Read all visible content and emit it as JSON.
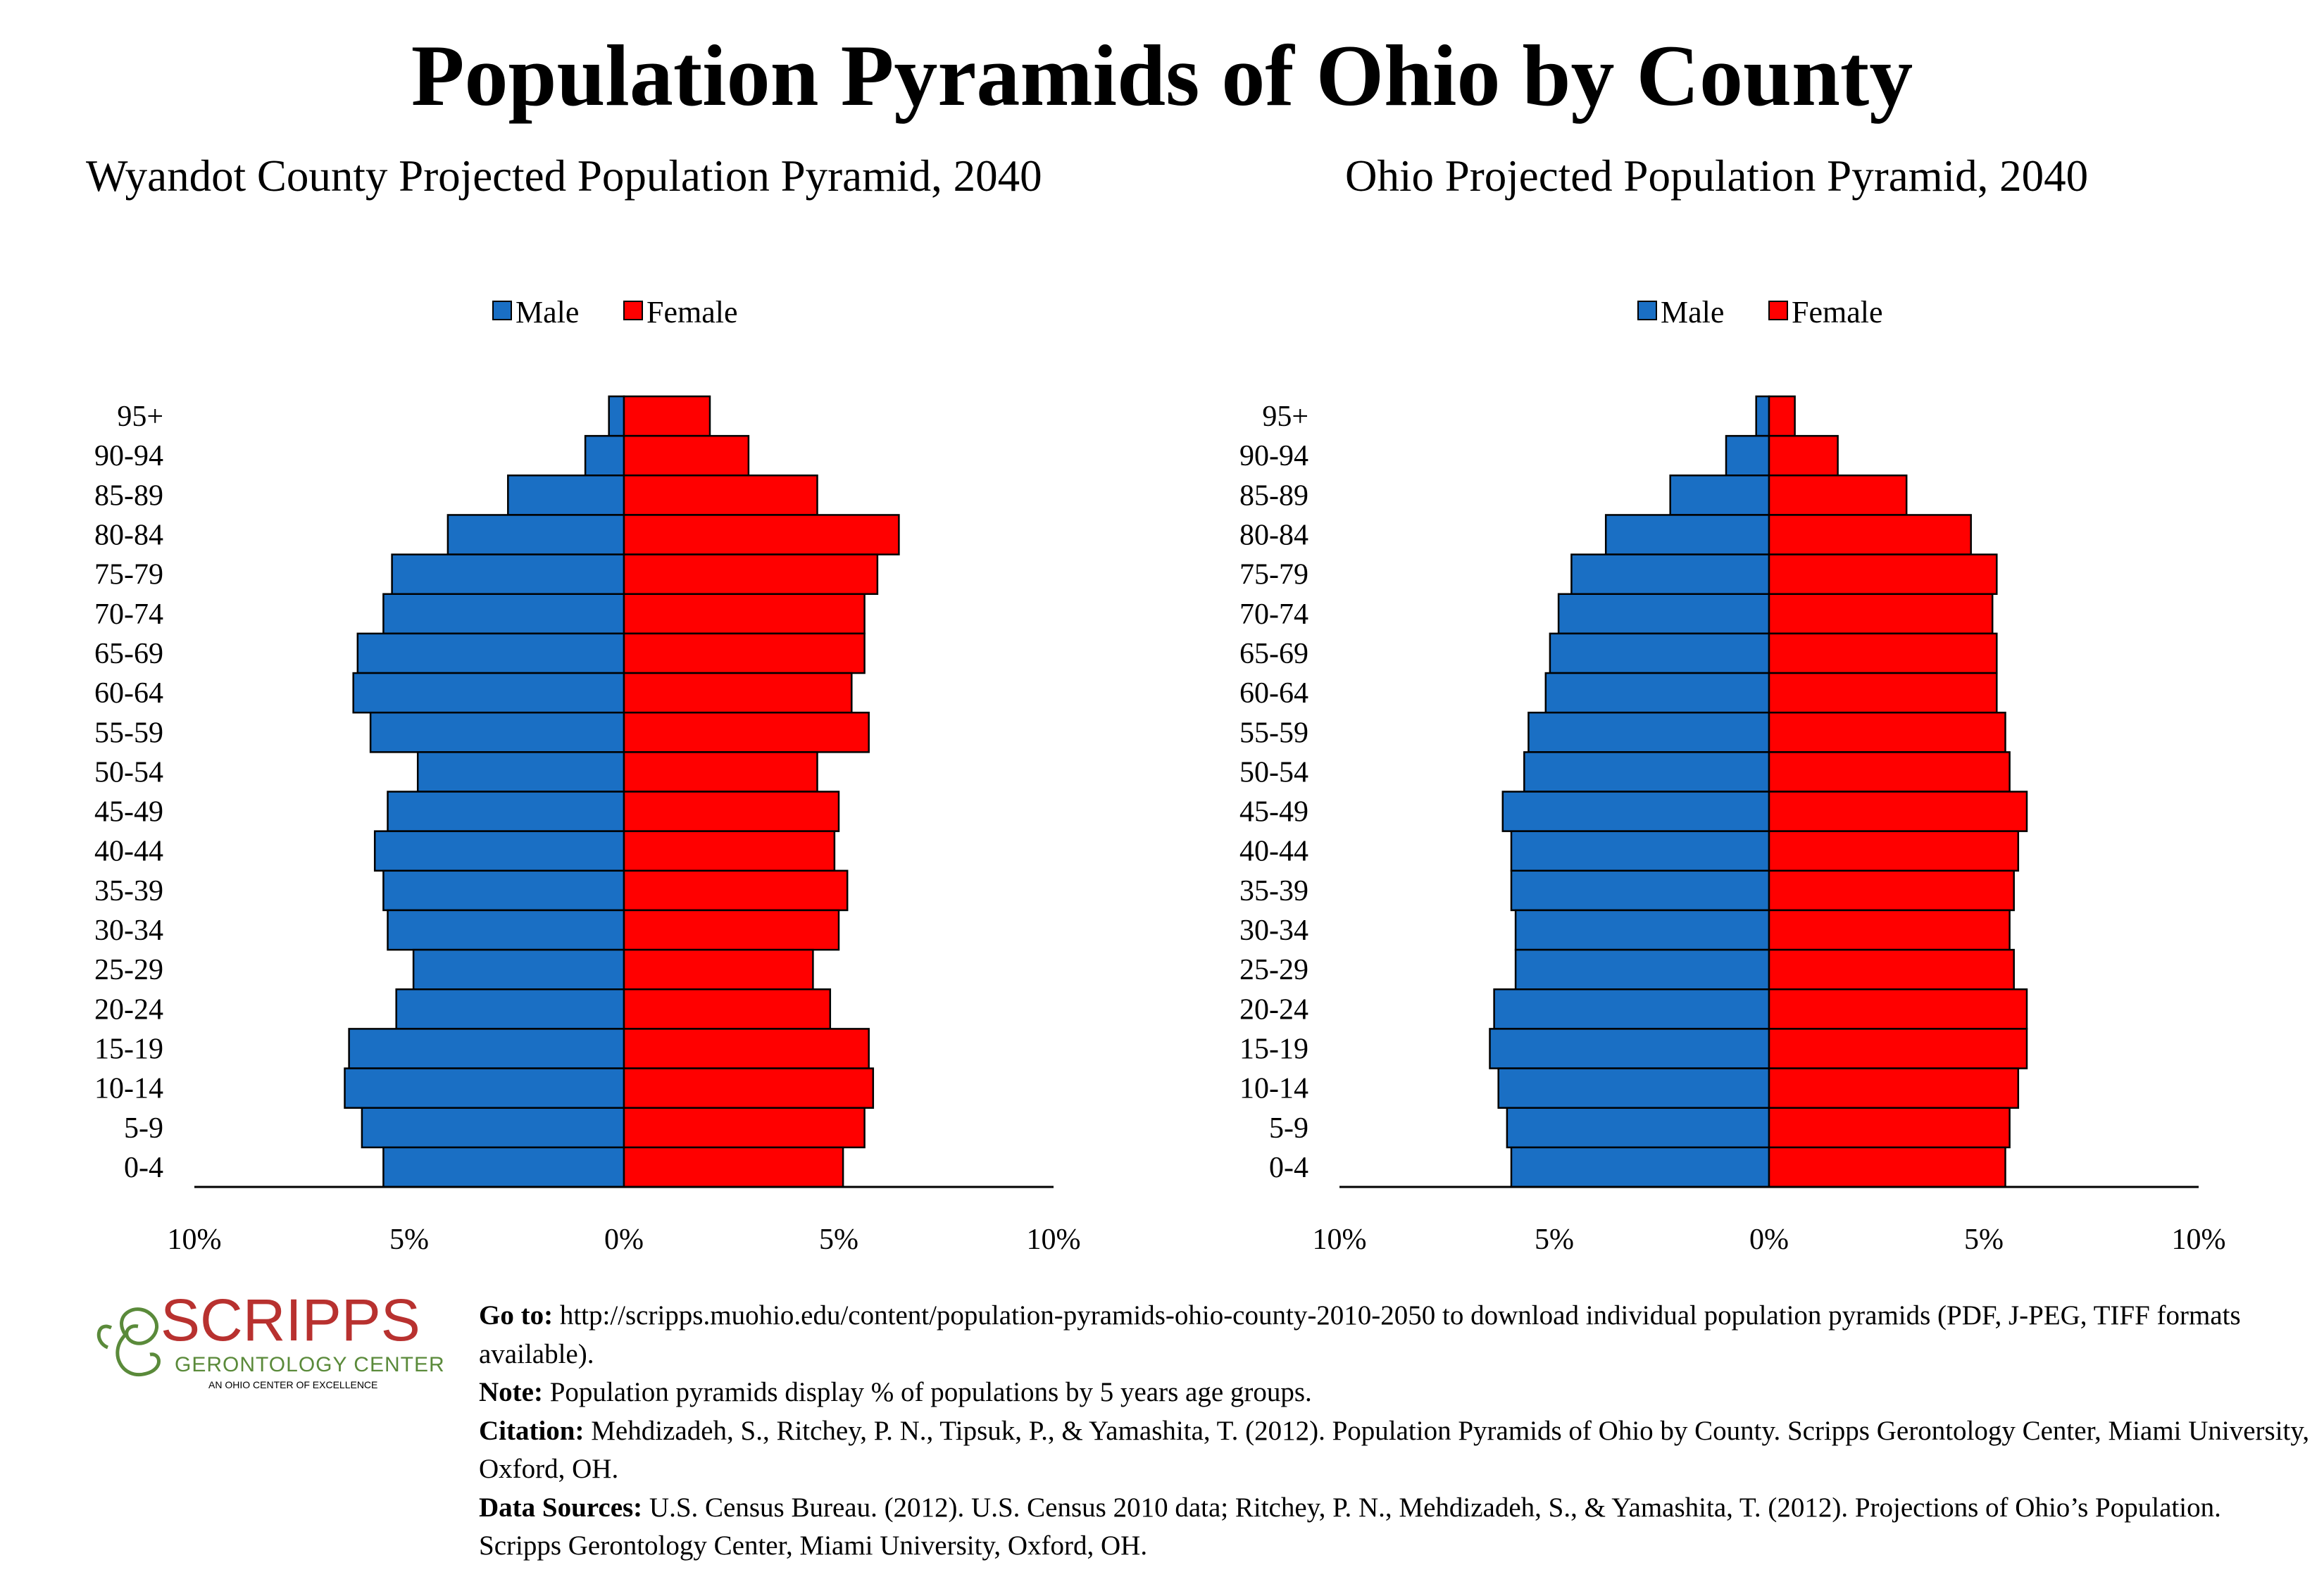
{
  "title": "Population Pyramids of Ohio by County",
  "colors": {
    "male": "#1a6fc4",
    "female": "#ff0000",
    "axis": "#000000",
    "logo_red": "#b8312f",
    "logo_green": "#5a8a3a"
  },
  "chart_data": [
    {
      "type": "bar",
      "title": "Wyandot County Projected Population Pyramid, 2040",
      "orientation": "horizontal-pyramid",
      "legend": {
        "position": "top-center",
        "entries": [
          "Male",
          "Female"
        ]
      },
      "categories": [
        "95+",
        "90-94",
        "85-89",
        "80-84",
        "75-79",
        "70-74",
        "65-69",
        "60-64",
        "55-59",
        "50-54",
        "45-49",
        "40-44",
        "35-39",
        "30-34",
        "25-29",
        "20-24",
        "15-19",
        "10-14",
        "5-9",
        "0-4"
      ],
      "series": [
        {
          "name": "Male",
          "values": [
            0.35,
            0.9,
            2.7,
            4.1,
            5.4,
            5.6,
            6.2,
            6.3,
            5.9,
            4.8,
            5.5,
            5.8,
            5.6,
            5.5,
            4.9,
            5.3,
            6.4,
            6.5,
            6.1,
            5.6
          ]
        },
        {
          "name": "Female",
          "values": [
            2.0,
            2.9,
            4.5,
            6.4,
            5.9,
            5.6,
            5.6,
            5.3,
            5.7,
            4.5,
            5.0,
            4.9,
            5.2,
            5.0,
            4.4,
            4.8,
            5.7,
            5.8,
            5.6,
            5.1
          ]
        }
      ],
      "xlim": [
        -10,
        10
      ],
      "xticks": [
        "10%",
        "5%",
        "0%",
        "5%",
        "10%"
      ],
      "grid": false
    },
    {
      "type": "bar",
      "title": "Ohio Projected Population Pyramid, 2040",
      "orientation": "horizontal-pyramid",
      "legend": {
        "position": "top-center",
        "entries": [
          "Male",
          "Female"
        ]
      },
      "categories": [
        "95+",
        "90-94",
        "85-89",
        "80-84",
        "75-79",
        "70-74",
        "65-69",
        "60-64",
        "55-59",
        "50-54",
        "45-49",
        "40-44",
        "35-39",
        "30-34",
        "25-29",
        "20-24",
        "15-19",
        "10-14",
        "5-9",
        "0-4"
      ],
      "series": [
        {
          "name": "Male",
          "values": [
            0.3,
            1.0,
            2.3,
            3.8,
            4.6,
            4.9,
            5.1,
            5.2,
            5.6,
            5.7,
            6.2,
            6.0,
            6.0,
            5.9,
            5.9,
            6.4,
            6.5,
            6.3,
            6.1,
            6.0
          ]
        },
        {
          "name": "Female",
          "values": [
            0.6,
            1.6,
            3.2,
            4.7,
            5.3,
            5.2,
            5.3,
            5.3,
            5.5,
            5.6,
            6.0,
            5.8,
            5.7,
            5.6,
            5.7,
            6.0,
            6.0,
            5.8,
            5.6,
            5.5
          ]
        }
      ],
      "xlim": [
        -10,
        10
      ],
      "xticks": [
        "10%",
        "5%",
        "0%",
        "5%",
        "10%"
      ],
      "grid": false
    }
  ],
  "logo": {
    "name": "SCRIPPS",
    "sub": "GERONTOLOGY CENTER",
    "tagline": "AN OHIO CENTER OF EXCELLENCE"
  },
  "footer": {
    "goto_label": "Go to:",
    "goto_text": " http://scripps.muohio.edu/content/population-pyramids-ohio-county-2010-2050 to download individual population pyramids (PDF, J-PEG, TIFF formats available).",
    "note_label": "Note:",
    "note_text": " Population pyramids display % of populations by 5 years age groups.",
    "citation_label": "Citation:",
    "citation_text": " Mehdizadeh, S., Ritchey, P. N., Tipsuk, P., & Yamashita, T. (2012). Population Pyramids of Ohio by County. Scripps Gerontology Center, Miami University, Oxford, OH.",
    "sources_label": "Data Sources:",
    "sources_text": " U.S. Census Bureau. (2012). U.S. Census 2010 data; Ritchey, P. N., Mehdizadeh, S., & Yamashita, T. (2012). Projections of Ohio’s Population. Scripps Gerontology Center, Miami University, Oxford, OH."
  }
}
